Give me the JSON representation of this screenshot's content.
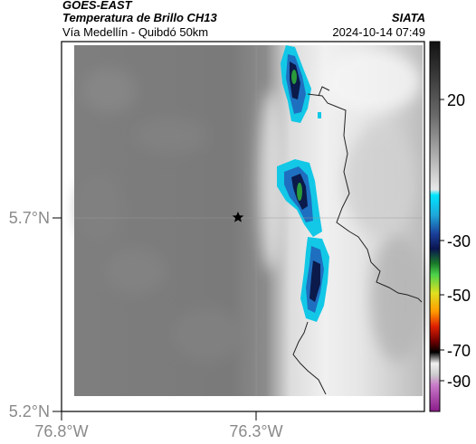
{
  "header": {
    "source": "GOES-EAST",
    "product": "Temperatura de Brillo CH13",
    "region": "Vía Medellín - Quibdó 50km",
    "organization": "SIATA",
    "timestamp": "2024-10-14 07:49"
  },
  "map": {
    "y_ticks": [
      "5.7°N",
      "5.2°N"
    ],
    "x_ticks": [
      "76.8°W",
      "76.3°W"
    ],
    "marker": "star-marker"
  },
  "colorbar": {
    "ticks": [
      "20",
      "-30",
      "-50",
      "-70",
      "-90"
    ]
  },
  "colors": {
    "cloud_cyan": "#12c8e6",
    "cloud_blue": "#1f4fa0",
    "cloud_navy": "#0b1a4a",
    "cloud_green": "#2a9a3a"
  }
}
